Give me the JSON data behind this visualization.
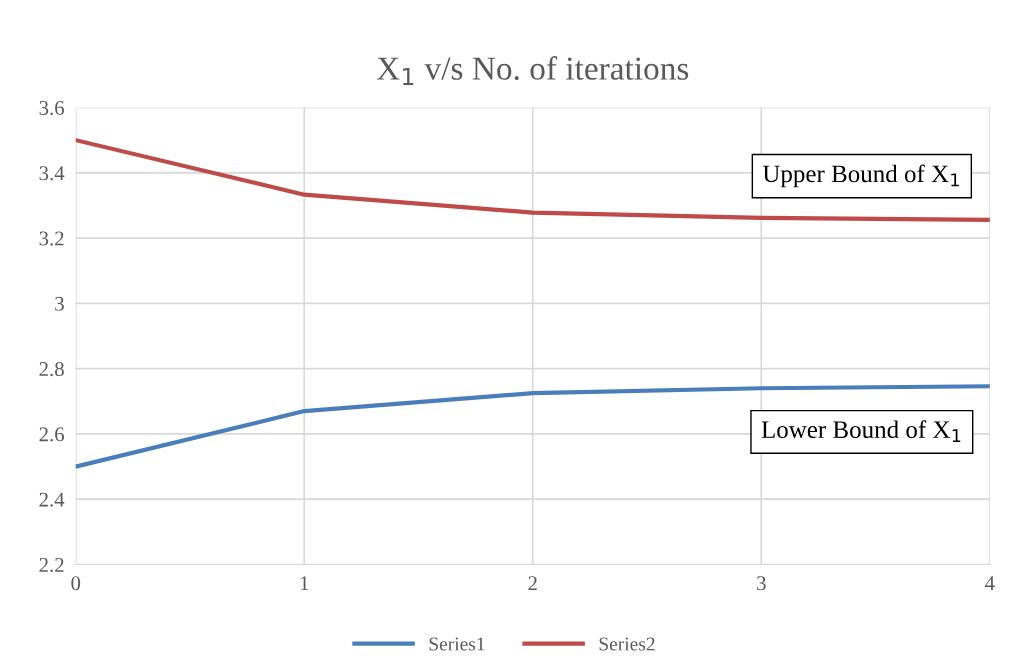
{
  "chart_data": {
    "type": "line",
    "title": "X$_{1}$ v/s No. of iterations",
    "x": [
      0,
      1,
      2,
      3,
      4
    ],
    "series": [
      {
        "name": "Series1",
        "color": "#4a7ebb",
        "values": [
          2.5,
          2.67,
          2.725,
          2.74,
          2.746
        ]
      },
      {
        "name": "Series2",
        "color": "#be4b48",
        "values": [
          3.5,
          3.333,
          3.278,
          3.262,
          3.256
        ]
      }
    ],
    "xlim": [
      0,
      4
    ],
    "xticks": [
      0,
      1,
      2,
      3,
      4
    ],
    "ylim": [
      2.2,
      3.6
    ],
    "yticks": [
      2.2,
      2.4,
      2.6,
      2.8,
      3,
      3.2,
      3.4,
      3.6
    ],
    "annotations": [
      "Upper Bound of X$_{1}$",
      "Lower Bound of X$_{1}$"
    ],
    "grid": true,
    "legend": "bottom",
    "marker": "none",
    "line_style": "solid"
  }
}
